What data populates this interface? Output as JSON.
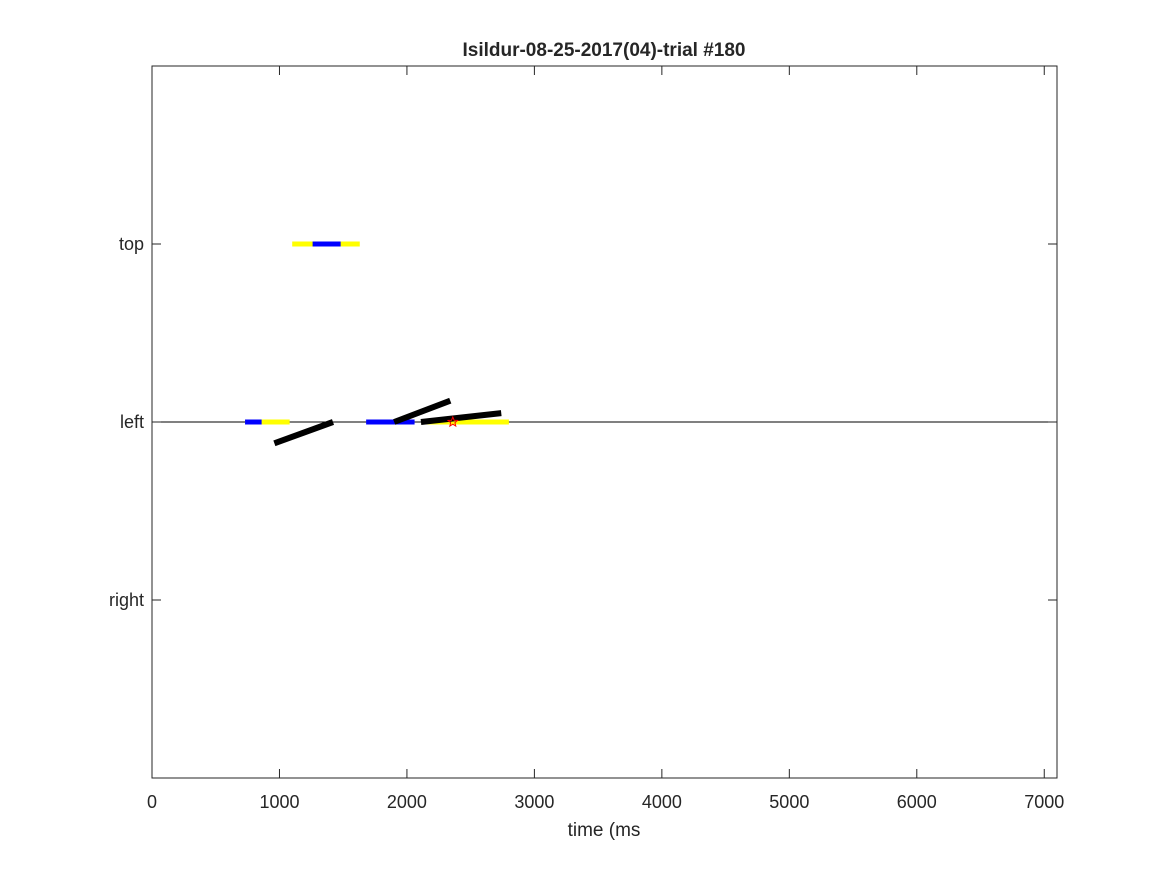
{
  "chart_data": {
    "type": "line",
    "title": "Isildur-08-25-2017(04)-trial #180",
    "xlabel": "time (ms",
    "ylabel": "",
    "xlim": [
      0,
      7100
    ],
    "ylim": [
      -2,
      2
    ],
    "x_ticks": [
      0,
      1000,
      2000,
      3000,
      4000,
      5000,
      6000,
      7000
    ],
    "x_tick_labels": [
      "0",
      "1000",
      "2000",
      "3000",
      "4000",
      "5000",
      "6000",
      "7000"
    ],
    "y_ticks": [
      1,
      0,
      -1
    ],
    "y_tick_labels": [
      "top",
      "left",
      "right"
    ],
    "grid": false,
    "reference_lines": [
      {
        "y": 0,
        "color": "#000000"
      }
    ],
    "series": [
      {
        "color": "#ffff00",
        "segments": [
          {
            "x": [
              1100,
              1630
            ],
            "y": [
              1,
              1
            ]
          },
          {
            "x": [
              730,
              1080
            ],
            "y": [
              0,
              0
            ]
          },
          {
            "x": [
              2120,
              2800
            ],
            "y": [
              0,
              0
            ]
          }
        ]
      },
      {
        "color": "#0000ff",
        "segments": [
          {
            "x": [
              1260,
              1480
            ],
            "y": [
              1,
              1
            ]
          },
          {
            "x": [
              730,
              860
            ],
            "y": [
              0,
              0
            ]
          },
          {
            "x": [
              1680,
              2060
            ],
            "y": [
              0,
              0
            ]
          }
        ]
      },
      {
        "color": "#000000",
        "segments": [
          {
            "x": [
              960,
              1420
            ],
            "y": [
              -0.12,
              0.0
            ]
          },
          {
            "x": [
              1900,
              2340
            ],
            "y": [
              0.0,
              0.12
            ]
          },
          {
            "x": [
              2110,
              2740
            ],
            "y": [
              0.0,
              0.05
            ]
          }
        ]
      }
    ],
    "markers": [
      {
        "x": 2360,
        "y": 0,
        "shape": "star",
        "color": "#ff0000"
      }
    ]
  }
}
